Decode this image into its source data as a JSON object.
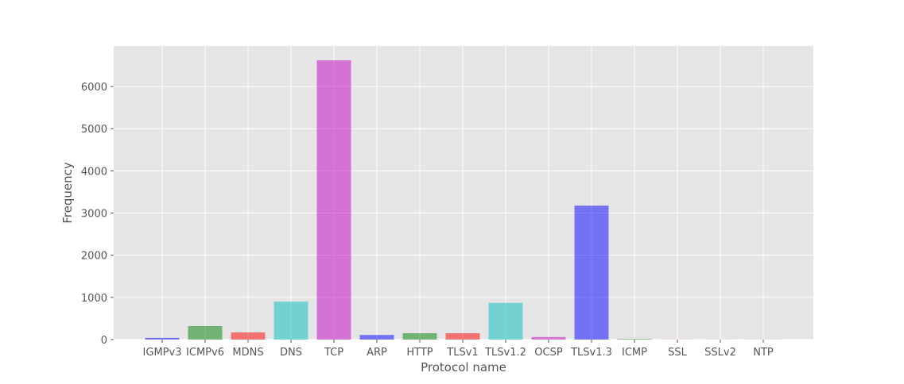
{
  "chart_data": {
    "type": "bar",
    "title": "",
    "xlabel": "Protocol name",
    "ylabel": "Frequency",
    "categories": [
      "IGMPv3",
      "ICMPv6",
      "MDNS",
      "DNS",
      "TCP",
      "ARP",
      "HTTP",
      "TLSv1",
      "TLSv1.2",
      "OCSP",
      "TLSv1.3",
      "ICMP",
      "SSL",
      "SSLv2",
      "NTP"
    ],
    "values": [
      40,
      320,
      170,
      900,
      6620,
      110,
      150,
      150,
      870,
      60,
      3175,
      15,
      3,
      2,
      2
    ],
    "bar_colors": [
      "#0000ff",
      "#008000",
      "#ff0000",
      "#00c0bf",
      "#bf00bf",
      "#0000ff",
      "#008000",
      "#ff0000",
      "#00c0bf",
      "#bf00bf",
      "#0000ff",
      "#008000",
      "#ff0000",
      "#00c0bf",
      "#bf00bf"
    ],
    "bar_opacity": 0.5,
    "yticks": [
      0,
      1000,
      2000,
      3000,
      4000,
      5000,
      6000
    ],
    "ylim": [
      0,
      6960
    ],
    "grid": true,
    "background": "#e5e5e5",
    "grid_color": "#ffffff"
  }
}
